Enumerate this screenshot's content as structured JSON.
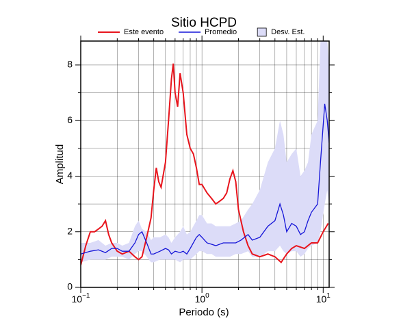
{
  "chart_data": {
    "type": "line",
    "title": "Sitio HCPD",
    "x_label": "Periodo (s)",
    "y_label": "Amplitud",
    "log_x": true,
    "grid": true,
    "legend": "top",
    "xlim": [
      0.1,
      11.2
    ],
    "ylim": [
      0,
      8.86
    ],
    "xticks": [
      {
        "value": 0.1,
        "label": "10",
        "exponent": "−1"
      },
      {
        "value": 1,
        "label": "10",
        "exponent": "0"
      },
      {
        "value": 10,
        "label": "10",
        "exponent": "1"
      }
    ],
    "xminor": [
      0.2,
      0.3,
      0.4,
      0.5,
      0.6,
      0.7,
      0.8,
      0.9,
      2,
      3,
      4,
      5,
      6,
      7,
      8,
      9
    ],
    "yticks": [
      0,
      2,
      4,
      6,
      8
    ],
    "yminor": [
      1,
      3,
      5,
      7
    ],
    "series": [
      {
        "name": "Este evento",
        "color": "#e8141c",
        "x": [
          0.1,
          0.11,
          0.12,
          0.13,
          0.14,
          0.15,
          0.16,
          0.17,
          0.18,
          0.2,
          0.22,
          0.25,
          0.28,
          0.3,
          0.32,
          0.35,
          0.38,
          0.4,
          0.42,
          0.44,
          0.46,
          0.5,
          0.53,
          0.56,
          0.58,
          0.6,
          0.63,
          0.66,
          0.7,
          0.75,
          0.8,
          0.85,
          0.9,
          0.95,
          1.0,
          1.1,
          1.2,
          1.3,
          1.4,
          1.5,
          1.6,
          1.7,
          1.8,
          1.9,
          2.0,
          2.2,
          2.4,
          2.6,
          3.0,
          3.5,
          4.0,
          4.5,
          5.0,
          5.5,
          6.0,
          7.0,
          8.0,
          9.0,
          10,
          11
        ],
        "values": [
          0.8,
          1.5,
          2.0,
          2.0,
          2.1,
          2.2,
          2.4,
          1.9,
          1.6,
          1.3,
          1.2,
          1.3,
          1.1,
          1.0,
          1.1,
          1.8,
          2.5,
          3.5,
          4.3,
          3.8,
          3.6,
          4.5,
          6.0,
          7.5,
          8.05,
          7.0,
          6.5,
          7.7,
          7.0,
          5.5,
          5.0,
          4.8,
          4.3,
          3.7,
          3.7,
          3.4,
          3.2,
          3.0,
          3.1,
          3.2,
          3.4,
          3.9,
          4.2,
          3.8,
          2.8,
          2.0,
          1.5,
          1.2,
          1.1,
          1.2,
          1.1,
          0.9,
          1.2,
          1.4,
          1.5,
          1.4,
          1.6,
          1.6,
          2.0,
          2.3
        ]
      },
      {
        "name": "Promedio",
        "color": "#1414d8",
        "x": [
          0.1,
          0.12,
          0.14,
          0.16,
          0.18,
          0.2,
          0.22,
          0.25,
          0.28,
          0.3,
          0.32,
          0.35,
          0.38,
          0.4,
          0.45,
          0.5,
          0.53,
          0.56,
          0.6,
          0.66,
          0.7,
          0.75,
          0.8,
          0.9,
          0.95,
          1.0,
          1.1,
          1.2,
          1.3,
          1.5,
          1.7,
          1.9,
          2.1,
          2.4,
          2.6,
          3.0,
          3.5,
          4.0,
          4.4,
          4.7,
          5.0,
          5.5,
          6.0,
          6.5,
          7.0,
          7.5,
          8.0,
          9.0,
          9.5,
          10.3,
          10.8,
          11.2
        ],
        "values": [
          1.2,
          1.3,
          1.35,
          1.25,
          1.4,
          1.4,
          1.3,
          1.3,
          1.6,
          1.9,
          2.0,
          1.6,
          1.2,
          1.2,
          1.3,
          1.4,
          1.35,
          1.2,
          1.3,
          1.25,
          1.3,
          1.2,
          1.4,
          1.8,
          1.9,
          1.8,
          1.6,
          1.55,
          1.5,
          1.6,
          1.6,
          1.6,
          1.7,
          1.9,
          1.7,
          1.8,
          2.2,
          2.4,
          3.0,
          2.6,
          2.0,
          2.3,
          2.2,
          1.9,
          2.0,
          2.4,
          2.7,
          3.0,
          4.5,
          6.6,
          6.0,
          5.2
        ]
      }
    ],
    "band": {
      "name": "Desv. Est.",
      "color": "#dcdcf8",
      "upper": [
        1.6,
        1.6,
        1.7,
        1.5,
        1.6,
        1.6,
        1.5,
        1.6,
        2.2,
        2.4,
        2.1,
        2.0,
        1.7,
        1.8,
        1.8,
        1.9,
        1.8,
        1.6,
        1.8,
        2.0,
        2.2,
        1.9,
        2.0,
        2.4,
        2.6,
        2.6,
        2.3,
        2.3,
        2.2,
        2.2,
        2.2,
        2.3,
        2.4,
        2.8,
        3.0,
        3.5,
        4.5,
        5.0,
        6.0,
        5.5,
        4.5,
        4.8,
        5.0,
        4.0,
        4.2,
        4.5,
        5.5,
        6.0,
        8.86,
        8.86,
        8.86,
        8.0
      ],
      "lower": [
        0.9,
        1.0,
        1.0,
        1.0,
        1.1,
        1.1,
        1.1,
        1.0,
        1.2,
        1.3,
        1.3,
        1.1,
        0.9,
        0.9,
        1.0,
        1.0,
        1.0,
        1.0,
        1.0,
        0.9,
        1.0,
        1.0,
        1.0,
        1.2,
        1.3,
        1.3,
        1.2,
        1.2,
        1.1,
        1.1,
        1.1,
        1.2,
        1.2,
        1.3,
        1.1,
        1.1,
        1.3,
        1.3,
        1.5,
        1.3,
        1.2,
        1.3,
        1.3,
        1.1,
        1.2,
        1.4,
        1.5,
        1.6,
        2.0,
        3.0,
        3.5,
        3.0
      ]
    }
  }
}
